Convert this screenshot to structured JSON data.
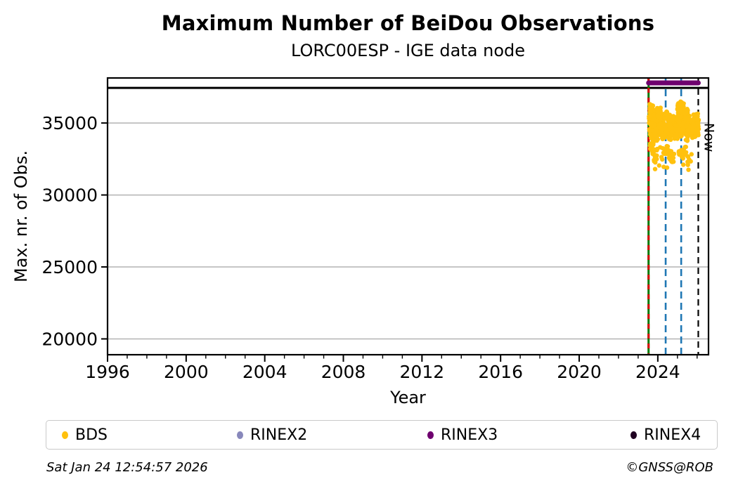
{
  "chart_data": {
    "type": "scatter",
    "title": "Maximum Number of BeiDou Observations",
    "subtitle": "LORC00ESP - IGE data node",
    "xlabel": "Year",
    "ylabel": "Max. nr. of Obs.",
    "xlim": [
      1996,
      2026.58
    ],
    "ylim": [
      18900,
      38130
    ],
    "x_major_ticks": [
      1996,
      2000,
      2004,
      2008,
      2012,
      2016,
      2020,
      2024
    ],
    "x_minor_step_years": 1,
    "y_ticks": [
      20000,
      25000,
      30000,
      35000
    ],
    "grid": "horizontal-gray-lines-at-y-ticks",
    "grid_color": "#b3b3b3",
    "frame_color": "#000000",
    "max_obs_line": {
      "value": 37440,
      "color": "#000000",
      "style": "solid"
    },
    "rinex3_span_bar": {
      "start": 2023.53,
      "end": 2026.06,
      "y_value": 37790,
      "color": "#6F006F"
    },
    "vlines": [
      {
        "year": 2023.53,
        "color": "#007A00",
        "dash": "solid",
        "width": 3,
        "name": "data-start-green"
      },
      {
        "year": 2023.53,
        "color": "#D90000",
        "dash": "7 7",
        "width": 3,
        "name": "data-start-red-dashes"
      },
      {
        "year": 2024.4,
        "color": "#1F77B4",
        "dash": "10 6",
        "width": 2.6,
        "name": "event-blue-1"
      },
      {
        "year": 2025.19,
        "color": "#1F77B4",
        "dash": "10 6",
        "width": 2.6,
        "name": "event-blue-2"
      },
      {
        "year": 2026.06,
        "color": "#000000",
        "dash": "9 6",
        "width": 2.2,
        "name": "now-line",
        "label": "Now"
      }
    ],
    "now_label": "Now",
    "series": [
      {
        "name": "BDS",
        "color": "#FFC10E",
        "marker": "circle",
        "x_range_years": [
          2023.53,
          2026.08
        ],
        "value_range": [
          31700,
          36550
        ],
        "typical_band": [
          33700,
          35700
        ]
      }
    ],
    "scatter": {
      "seed": 42,
      "point_radius": 3.2,
      "segments_format": "[year_start, year_end, value_min, value_max, n_points]",
      "segments": [
        [
          2023.55,
          2026.08,
          33700,
          35700,
          500
        ],
        [
          2023.58,
          2023.75,
          35400,
          36550,
          45
        ],
        [
          2023.78,
          2023.88,
          35300,
          36100,
          18
        ],
        [
          2023.97,
          2024.15,
          35300,
          36150,
          30
        ],
        [
          2024.33,
          2024.52,
          35200,
          35900,
          18
        ],
        [
          2025.0,
          2025.33,
          35400,
          36500,
          50
        ],
        [
          2025.36,
          2025.6,
          35200,
          36050,
          22
        ],
        [
          2025.82,
          2026.05,
          35100,
          35750,
          18
        ],
        [
          2023.6,
          2023.78,
          32600,
          33800,
          18
        ],
        [
          2023.8,
          2023.98,
          32100,
          33600,
          16
        ],
        [
          2024.12,
          2024.62,
          32400,
          33700,
          22
        ],
        [
          2024.63,
          2024.85,
          31900,
          33400,
          10
        ],
        [
          2025.05,
          2025.5,
          32300,
          33600,
          18
        ],
        [
          2025.5,
          2025.75,
          31800,
          32900,
          8
        ]
      ],
      "extra_points": [
        [
          2023.86,
          31800
        ],
        [
          2024.07,
          32050
        ],
        [
          2024.3,
          31950
        ],
        [
          2024.47,
          31900
        ],
        [
          2025.3,
          32100
        ],
        [
          2025.56,
          31750
        ]
      ]
    }
  },
  "legend": {
    "items": [
      {
        "label": "BDS",
        "color": "#FFC10E"
      },
      {
        "label": "RINEX2",
        "color": "#8888BB"
      },
      {
        "label": "RINEX3",
        "color": "#6F006F"
      },
      {
        "label": "RINEX4",
        "color": "#200022"
      }
    ]
  },
  "footer": {
    "timestamp": "Sat Jan 24 12:54:57 2026",
    "credit": "©GNSS@ROB"
  }
}
